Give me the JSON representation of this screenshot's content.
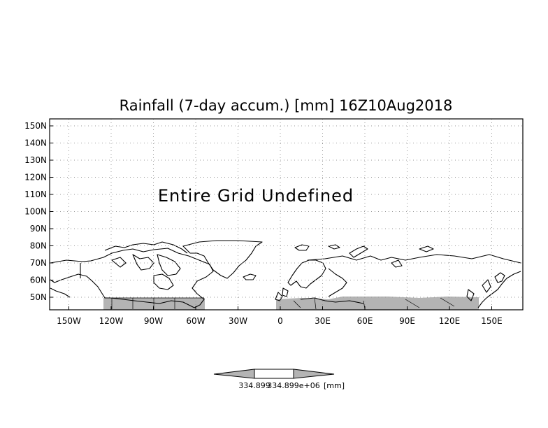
{
  "title": "Rainfall (7-day accum.) [mm] 16Z10Aug2018",
  "overlay_text": "Entire Grid Undefined",
  "y_tick_labels": [
    "150N",
    "140N",
    "130N",
    "120N",
    "110N",
    "100N",
    "90N",
    "80N",
    "70N",
    "60N",
    "50N"
  ],
  "x_tick_labels": [
    "150W",
    "120W",
    "90W",
    "60W",
    "30W",
    "0",
    "30E",
    "60E",
    "90E",
    "120E",
    "150E"
  ],
  "colorbar": {
    "left_label": "334.899",
    "right_label": "334.899e+06",
    "unit": "[mm]"
  },
  "colors": {
    "land_outline": "#000000",
    "undefined_shade": "#b4b4b4",
    "grid": "#9a9a9a"
  }
}
